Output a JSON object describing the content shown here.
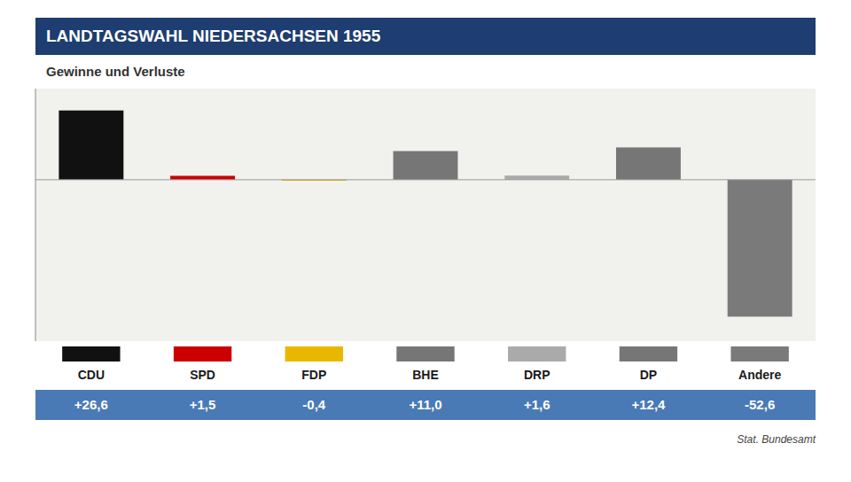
{
  "chart_data": {
    "type": "bar",
    "title": "LANDTAGSWAHL NIEDERSACHSEN 1955",
    "subtitle": "Gewinne und Verluste",
    "source": "Stat. Bundesamt",
    "categories": [
      "CDU",
      "SPD",
      "FDP",
      "BHE",
      "DRP",
      "DP",
      "Andere"
    ],
    "values": [
      26.6,
      1.5,
      -0.4,
      11.0,
      1.6,
      12.4,
      -52.6
    ],
    "value_labels": [
      "+26,6",
      "+1,5",
      "-0,4",
      "+11,0",
      "+1,6",
      "+12,4",
      "-52,6"
    ],
    "colors": [
      "#111111",
      "#cc0000",
      "#e8b800",
      "#767676",
      "#aaaaaa",
      "#767676",
      "#7a7a7a"
    ],
    "ylim": [
      -62,
      35
    ],
    "yticks": [
      0
    ],
    "tick_labels": "x",
    "data_labels": true
  }
}
